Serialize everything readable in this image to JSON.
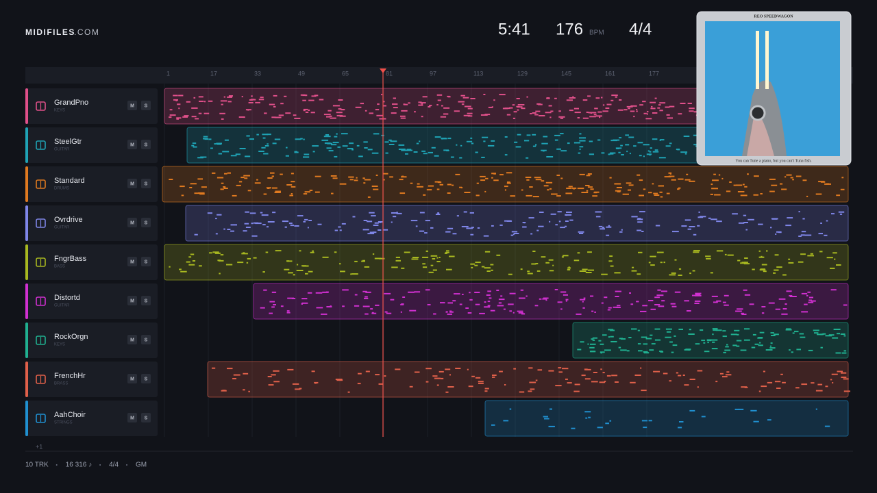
{
  "brand": {
    "name": "MIDIFILES",
    "suffix": ".COM"
  },
  "transport": {
    "time": "5:41",
    "tempo": "176",
    "tempo_unit": "BPM",
    "meter": "4/4"
  },
  "ruler": [
    "1",
    "17",
    "33",
    "49",
    "65",
    "81",
    "97",
    "113",
    "129",
    "145",
    "161",
    "177"
  ],
  "tracks": [
    {
      "name": "GrandPno",
      "category": "KEYS",
      "color": "#e0508a",
      "mute": "M",
      "solo": "S"
    },
    {
      "name": "SteelGtr",
      "category": "GUITAR",
      "color": "#1fa3b5",
      "mute": "M",
      "solo": "S"
    },
    {
      "name": "Standard",
      "category": "DRUMS",
      "color": "#e07a20",
      "mute": "M",
      "solo": "S"
    },
    {
      "name": "Ovrdrive",
      "category": "GUITAR",
      "color": "#7f86e8",
      "mute": "M",
      "solo": "S"
    },
    {
      "name": "FngrBass",
      "category": "BASS",
      "color": "#a8b820",
      "mute": "M",
      "solo": "S"
    },
    {
      "name": "Distortd",
      "category": "GUITAR",
      "color": "#d030d0",
      "mute": "M",
      "solo": "S"
    },
    {
      "name": "RockOrgn",
      "category": "KEYS",
      "color": "#20b090",
      "mute": "M",
      "solo": "S"
    },
    {
      "name": "FrenchHr",
      "category": "BRASS",
      "color": "#e0604a",
      "mute": "M",
      "solo": "S"
    },
    {
      "name": "AahChoir",
      "category": "STRINGS",
      "color": "#2090d0",
      "mute": "M",
      "solo": "S"
    }
  ],
  "more": "+1",
  "footer": [
    "10 TRK",
    "16 316 ♪",
    "4/4",
    "GM"
  ],
  "cover": {
    "artist": "REO SPEEDWAGON",
    "caption": "You can Tune a piano, but you can't Tuna fish."
  }
}
